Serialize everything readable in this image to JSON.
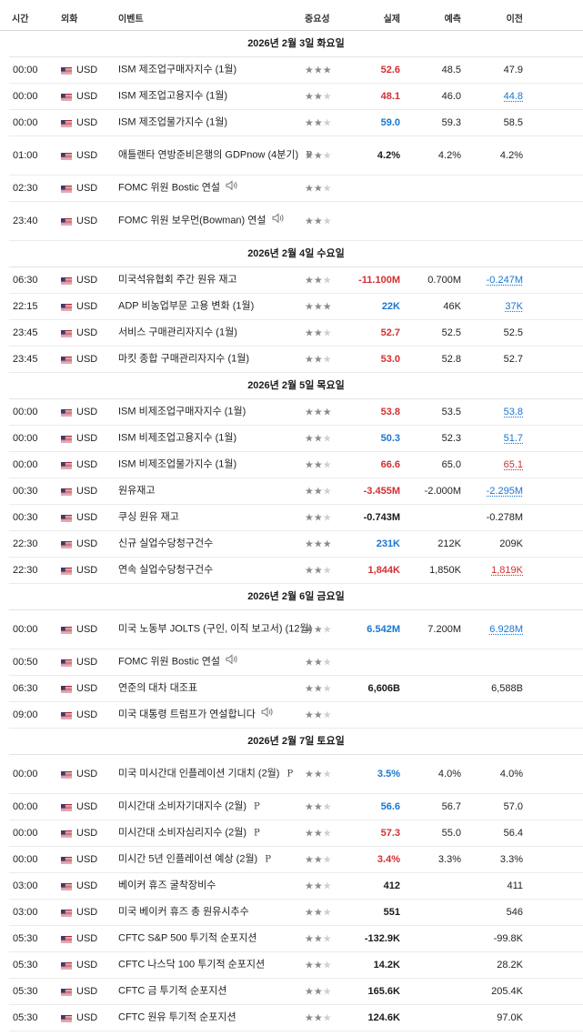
{
  "columns": {
    "time": "시간",
    "currency": "외화",
    "event": "이벤트",
    "importance": "중요성",
    "actual": "실제",
    "forecast": "예측",
    "previous": "이전"
  },
  "days": [
    {
      "date": "2026년 2월 3일 화요일",
      "events": [
        {
          "time": "00:00",
          "currency": "USD",
          "event": "ISM 제조업구매자지수  (1월)",
          "imp": 3,
          "actual": "52.6",
          "ac": "red",
          "forecast": "48.5",
          "previous": "47.9",
          "pc": "plain"
        },
        {
          "time": "00:00",
          "currency": "USD",
          "event": "ISM 제조업고용지수  (1월)",
          "imp": 2,
          "actual": "48.1",
          "ac": "red",
          "forecast": "46.0",
          "previous": "44.8",
          "pc": "rev-b"
        },
        {
          "time": "00:00",
          "currency": "USD",
          "event": "ISM 제조업물가지수  (1월)",
          "imp": 2,
          "actual": "59.0",
          "ac": "blue",
          "forecast": "59.3",
          "previous": "58.5",
          "pc": "plain"
        },
        {
          "time": "01:00",
          "currency": "USD",
          "event": "애틀랜타 연방준비은행의 GDPnow (4분기)",
          "tag": "P",
          "imp": 2,
          "actual": "4.2%",
          "ac": "blk",
          "forecast": "4.2%",
          "previous": "4.2%",
          "pc": "plain",
          "tall": true
        },
        {
          "time": "02:30",
          "currency": "USD",
          "event": "FOMC 위원 Bostic 연설",
          "speech": true,
          "imp": 2,
          "actual": "",
          "ac": "blk",
          "forecast": "",
          "previous": "",
          "pc": "plain"
        },
        {
          "time": "23:40",
          "currency": "USD",
          "event": "FOMC 위원 보우먼(Bowman) 연설",
          "speech": true,
          "imp": 2,
          "actual": "",
          "ac": "blk",
          "forecast": "",
          "previous": "",
          "pc": "plain",
          "tall": true
        }
      ]
    },
    {
      "date": "2026년 2월 4일 수요일",
      "events": [
        {
          "time": "06:30",
          "currency": "USD",
          "event": "미국석유협회 주간 원유 재고",
          "imp": 2,
          "actual": "-11.100M",
          "ac": "red",
          "forecast": "0.700M",
          "previous": "-0.247M",
          "pc": "rev-b"
        },
        {
          "time": "22:15",
          "currency": "USD",
          "event": "ADP 비농업부문 고용 변화  (1월)",
          "imp": 3,
          "actual": "22K",
          "ac": "blue",
          "forecast": "46K",
          "previous": "37K",
          "pc": "rev-b"
        },
        {
          "time": "23:45",
          "currency": "USD",
          "event": "서비스 구매관리자지수  (1월)",
          "imp": 2,
          "actual": "52.7",
          "ac": "red",
          "forecast": "52.5",
          "previous": "52.5",
          "pc": "plain"
        },
        {
          "time": "23:45",
          "currency": "USD",
          "event": "마킷 종합 구매관리자지수  (1월)",
          "imp": 2,
          "actual": "53.0",
          "ac": "red",
          "forecast": "52.8",
          "previous": "52.7",
          "pc": "plain"
        }
      ]
    },
    {
      "date": "2026년 2월 5일 목요일",
      "events": [
        {
          "time": "00:00",
          "currency": "USD",
          "event": "ISM 비제조업구매자지수  (1월)",
          "imp": 3,
          "actual": "53.8",
          "ac": "red",
          "forecast": "53.5",
          "previous": "53.8",
          "pc": "rev-b"
        },
        {
          "time": "00:00",
          "currency": "USD",
          "event": "ISM 비제조업고용지수  (1월)",
          "imp": 2,
          "actual": "50.3",
          "ac": "blue",
          "forecast": "52.3",
          "previous": "51.7",
          "pc": "rev-b"
        },
        {
          "time": "00:00",
          "currency": "USD",
          "event": "ISM 비제조업물가지수  (1월)",
          "imp": 2,
          "actual": "66.6",
          "ac": "red",
          "forecast": "65.0",
          "previous": "65.1",
          "pc": "rev-r"
        },
        {
          "time": "00:30",
          "currency": "USD",
          "event": "원유재고",
          "imp": 2,
          "actual": "-3.455M",
          "ac": "red",
          "forecast": "-2.000M",
          "previous": "-2.295M",
          "pc": "rev-b"
        },
        {
          "time": "00:30",
          "currency": "USD",
          "event": "쿠싱 원유 재고",
          "imp": 2,
          "actual": "-0.743M",
          "ac": "blk",
          "forecast": "",
          "previous": "-0.278M",
          "pc": "plain"
        },
        {
          "time": "22:30",
          "currency": "USD",
          "event": "신규 실업수당청구건수",
          "imp": 3,
          "actual": "231K",
          "ac": "blue",
          "forecast": "212K",
          "previous": "209K",
          "pc": "plain"
        },
        {
          "time": "22:30",
          "currency": "USD",
          "event": "연속 실업수당청구건수",
          "imp": 2,
          "actual": "1,844K",
          "ac": "red",
          "forecast": "1,850K",
          "previous": "1,819K",
          "pc": "rev-r"
        }
      ]
    },
    {
      "date": "2026년 2월 6일 금요일",
      "events": [
        {
          "time": "00:00",
          "currency": "USD",
          "event": "미국 노동부 JOLTS (구인, 이직 보고서) (12월)",
          "imp": 2,
          "actual": "6.542M",
          "ac": "blue",
          "forecast": "7.200M",
          "previous": "6.928M",
          "pc": "rev-b",
          "tall": true
        },
        {
          "time": "00:50",
          "currency": "USD",
          "event": "FOMC 위원 Bostic 연설",
          "speech": true,
          "imp": 2,
          "actual": "",
          "ac": "blk",
          "forecast": "",
          "previous": "",
          "pc": "plain"
        },
        {
          "time": "06:30",
          "currency": "USD",
          "event": "연준의 대차 대조표",
          "imp": 2,
          "actual": "6,606B",
          "ac": "blk",
          "forecast": "",
          "previous": "6,588B",
          "pc": "plain"
        },
        {
          "time": "09:00",
          "currency": "USD",
          "event": "미국 대통령 트럼프가 연설합니다",
          "speech": true,
          "imp": 2,
          "actual": "",
          "ac": "blk",
          "forecast": "",
          "previous": "",
          "pc": "plain"
        }
      ]
    },
    {
      "date": "2026년 2월 7일 토요일",
      "events": [
        {
          "time": "00:00",
          "currency": "USD",
          "event": "미국 미시간대 인플레이션 기대치 (2월)",
          "tag": "P",
          "imp": 2,
          "actual": "3.5%",
          "ac": "blue",
          "forecast": "4.0%",
          "previous": "4.0%",
          "pc": "plain",
          "tall": true
        },
        {
          "time": "00:00",
          "currency": "USD",
          "event": "미시간대 소비자기대지수  (2월)",
          "tag": "P",
          "imp": 2,
          "actual": "56.6",
          "ac": "blue",
          "forecast": "56.7",
          "previous": "57.0",
          "pc": "plain"
        },
        {
          "time": "00:00",
          "currency": "USD",
          "event": "미시간대 소비자심리지수  (2월)",
          "tag": "P",
          "imp": 2,
          "actual": "57.3",
          "ac": "red",
          "forecast": "55.0",
          "previous": "56.4",
          "pc": "plain"
        },
        {
          "time": "00:00",
          "currency": "USD",
          "event": "미시간 5년 인플레이션 예상  (2월)",
          "tag": "P",
          "imp": 2,
          "actual": "3.4%",
          "ac": "red",
          "forecast": "3.3%",
          "previous": "3.3%",
          "pc": "plain"
        },
        {
          "time": "03:00",
          "currency": "USD",
          "event": "베이커 휴즈 굴착장비수",
          "imp": 2,
          "actual": "412",
          "ac": "blk",
          "forecast": "",
          "previous": "411",
          "pc": "plain"
        },
        {
          "time": "03:00",
          "currency": "USD",
          "event": "미국 베이커 휴즈 총 원유시추수",
          "imp": 2,
          "actual": "551",
          "ac": "blk",
          "forecast": "",
          "previous": "546",
          "pc": "plain"
        },
        {
          "time": "05:30",
          "currency": "USD",
          "event": "CFTC S&P 500 투기적 순포지션",
          "imp": 2,
          "actual": "-132.9K",
          "ac": "blk",
          "forecast": "",
          "previous": "-99.8K",
          "pc": "plain"
        },
        {
          "time": "05:30",
          "currency": "USD",
          "event": "CFTC 나스닥 100 투기적 순포지션",
          "imp": 2,
          "actual": "14.2K",
          "ac": "blk",
          "forecast": "",
          "previous": "28.2K",
          "pc": "plain"
        },
        {
          "time": "05:30",
          "currency": "USD",
          "event": "CFTC 금 투기적 순포지션",
          "imp": 2,
          "actual": "165.6K",
          "ac": "blk",
          "forecast": "",
          "previous": "205.4K",
          "pc": "plain"
        },
        {
          "time": "05:30",
          "currency": "USD",
          "event": "CFTC 원유 투기적 순포지션",
          "imp": 2,
          "actual": "124.6K",
          "ac": "blk",
          "forecast": "",
          "previous": "97.0K",
          "pc": "plain"
        }
      ]
    }
  ]
}
